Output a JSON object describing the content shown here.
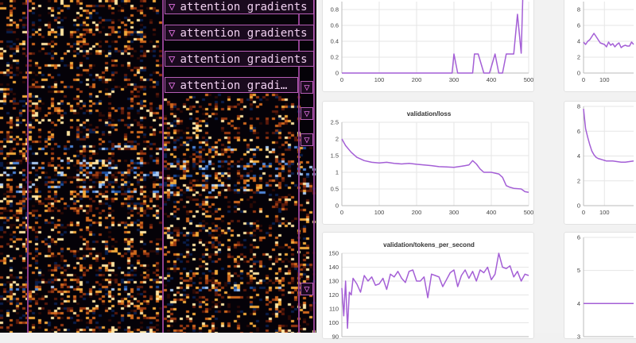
{
  "viz_panel": {
    "headers": [
      {
        "label": "attention gradients"
      },
      {
        "label": "attention gradients"
      },
      {
        "label": "attention gradients"
      },
      {
        "label": "attention gradi…"
      }
    ]
  },
  "charts": {
    "top_left": {
      "title": "",
      "y_ticks": [
        "0",
        "0.2",
        "0.4",
        "0.6",
        "0.8"
      ],
      "x_ticks": [
        "0",
        "100",
        "200",
        "300",
        "400",
        "500"
      ],
      "chart_data": {
        "type": "line",
        "xlim": [
          0,
          500
        ],
        "ylim": [
          0,
          0.9
        ],
        "x": [
          0,
          290,
          295,
          300,
          310,
          350,
          355,
          365,
          380,
          395,
          410,
          420,
          430,
          440,
          460,
          470,
          480,
          484
        ],
        "y": [
          0,
          0,
          0,
          0.24,
          0,
          0,
          0.24,
          0.24,
          0,
          0,
          0.24,
          0,
          0,
          0.24,
          0.24,
          0.74,
          0.25,
          0.92
        ]
      }
    },
    "top_right": {
      "title": "",
      "y_ticks": [
        "0",
        "2",
        "4",
        "6",
        "8"
      ],
      "x_ticks": [
        "0",
        "100"
      ],
      "chart_data": {
        "type": "line",
        "xlim": [
          0,
          240
        ],
        "ylim": [
          0,
          9
        ],
        "x": [
          0,
          10,
          20,
          30,
          40,
          50,
          60,
          70,
          80,
          90,
          100,
          110,
          120,
          130,
          140,
          150,
          160,
          170,
          180,
          190,
          200,
          210,
          220,
          230,
          240
        ],
        "y": [
          3.9,
          3.6,
          4.0,
          4.2,
          4.6,
          5.0,
          4.6,
          4.2,
          3.8,
          3.7,
          3.6,
          3.3,
          3.9,
          3.5,
          3.7,
          3.3,
          3.6,
          3.8,
          3.2,
          3.4,
          3.5,
          3.4,
          3.4,
          3.9,
          3.6
        ]
      }
    },
    "mid_left": {
      "title": "validation/loss",
      "y_ticks": [
        "0",
        "0.5",
        "1",
        "1.5",
        "2",
        "2.5"
      ],
      "x_ticks": [
        "0",
        "100",
        "200",
        "300",
        "400",
        "500"
      ],
      "chart_data": {
        "type": "line",
        "xlim": [
          0,
          500
        ],
        "ylim": [
          0,
          2.5
        ],
        "x": [
          0,
          10,
          25,
          40,
          60,
          80,
          100,
          120,
          140,
          160,
          180,
          200,
          220,
          240,
          260,
          280,
          300,
          320,
          330,
          340,
          350,
          360,
          370,
          380,
          400,
          420,
          430,
          440,
          450,
          460,
          480,
          490,
          500
        ],
        "y": [
          2.0,
          1.8,
          1.6,
          1.45,
          1.35,
          1.3,
          1.28,
          1.3,
          1.27,
          1.25,
          1.27,
          1.24,
          1.22,
          1.2,
          1.17,
          1.16,
          1.15,
          1.18,
          1.2,
          1.22,
          1.35,
          1.25,
          1.1,
          1.0,
          1.0,
          0.95,
          0.85,
          0.6,
          0.55,
          0.52,
          0.5,
          0.42,
          0.4
        ]
      }
    },
    "mid_right": {
      "title": "",
      "y_ticks": [
        "0",
        "2",
        "4",
        "6",
        "8"
      ],
      "x_ticks": [
        "0",
        "100"
      ],
      "chart_data": {
        "type": "line",
        "xlim": [
          0,
          240
        ],
        "ylim": [
          0,
          8
        ],
        "x": [
          0,
          5,
          10,
          20,
          30,
          40,
          50,
          60,
          70,
          80,
          90,
          100,
          110,
          120,
          140,
          160,
          180,
          200,
          220,
          240
        ],
        "y": [
          7.8,
          7.0,
          6.2,
          5.5,
          4.9,
          4.4,
          4.1,
          3.9,
          3.8,
          3.75,
          3.7,
          3.65,
          3.6,
          3.6,
          3.6,
          3.55,
          3.5,
          3.5,
          3.55,
          3.6
        ]
      }
    },
    "bottom_left": {
      "title": "validation/tokens_per_second",
      "y_ticks": [
        "90",
        "100",
        "110",
        "120",
        "130",
        "140",
        "150"
      ],
      "x_ticks": [],
      "chart_data": {
        "type": "line",
        "xlim": [
          0,
          500
        ],
        "ylim": [
          90,
          150
        ],
        "x": [
          0,
          5,
          10,
          15,
          20,
          25,
          30,
          40,
          50,
          60,
          70,
          80,
          90,
          100,
          110,
          120,
          130,
          140,
          150,
          160,
          170,
          180,
          190,
          200,
          210,
          220,
          230,
          240,
          250,
          260,
          270,
          280,
          290,
          300,
          310,
          320,
          330,
          340,
          350,
          360,
          370,
          380,
          390,
          400,
          410,
          420,
          430,
          440,
          450,
          460,
          470,
          480,
          490,
          500
        ],
        "y": [
          125,
          105,
          130,
          96,
          122,
          120,
          132,
          128,
          122,
          134,
          130,
          133,
          127,
          128,
          132,
          124,
          135,
          133,
          137,
          132,
          129,
          137,
          138,
          130,
          130,
          133,
          118,
          135,
          134,
          133,
          126,
          131,
          136,
          138,
          126,
          134,
          138,
          132,
          137,
          130,
          138,
          136,
          140,
          131,
          135,
          150,
          140,
          139,
          141,
          133,
          137,
          130,
          135,
          134
        ]
      }
    },
    "bottom_right": {
      "title": "",
      "y_ticks": [
        "3",
        "4",
        "5",
        "6"
      ],
      "x_ticks": [],
      "chart_data": {
        "type": "line",
        "xlim": [
          0,
          240
        ],
        "ylim": [
          3,
          6
        ],
        "x": [
          0,
          240
        ],
        "y": [
          4,
          4
        ]
      }
    }
  }
}
